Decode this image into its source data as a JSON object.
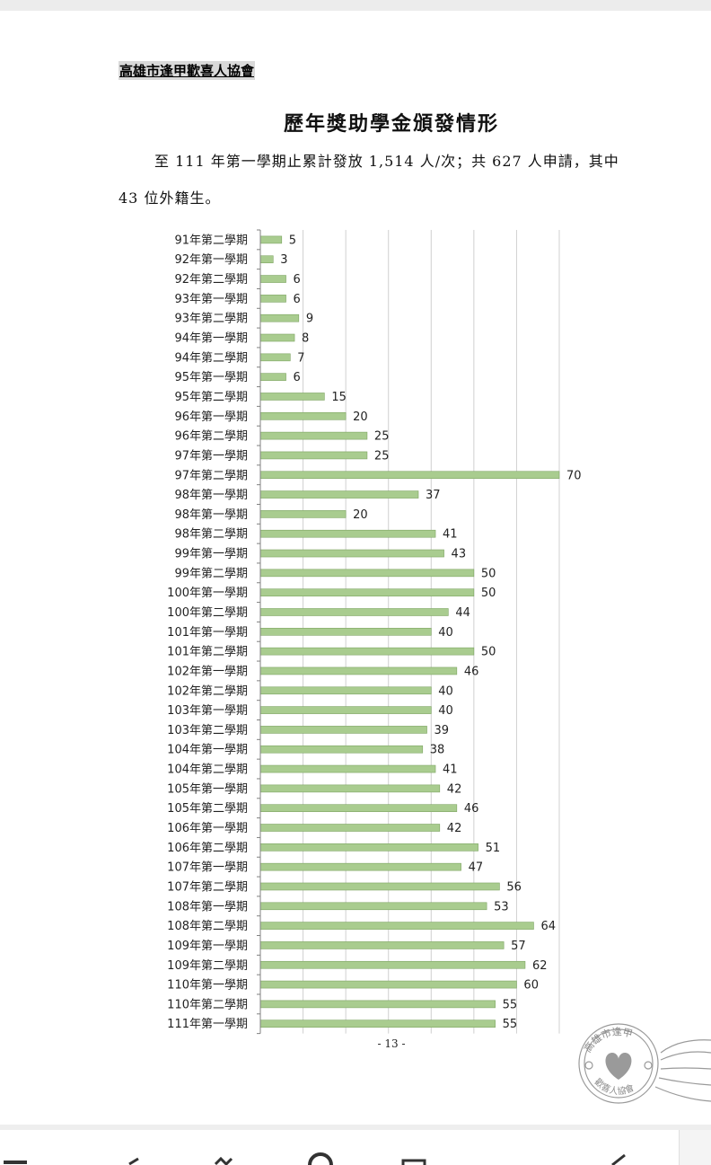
{
  "document": {
    "organization": "高雄市逢甲歡喜人協會",
    "title": "歷年獎助學金頒發情形",
    "paragraph_line1": "至 111 年第一學期止累計發放 1,514 人/次；共 627 人申請，其中",
    "paragraph_line2": "43 位外籍生。",
    "page_number": "- 13 -",
    "stamp_text_top": "高雄市逢甲",
    "stamp_text_bottom": "歡喜人協會"
  },
  "chart_data": {
    "type": "bar",
    "orientation": "horizontal",
    "categories": [
      "91年第二學期",
      "92年第一學期",
      "92年第二學期",
      "93年第一學期",
      "93年第二學期",
      "94年第一學期",
      "94年第二學期",
      "95年第一學期",
      "95年第二學期",
      "96年第一學期",
      "96年第二學期",
      "97年第一學期",
      "97年第二學期",
      "98年第一學期",
      "98年第一學期",
      "98年第二學期",
      "99年第一學期",
      "99年第二學期",
      "100年第一學期",
      "100年第二學期",
      "101年第一學期",
      "101年第二學期",
      "102年第一學期",
      "102年第二學期",
      "103年第一學期",
      "103年第二學期",
      "104年第一學期",
      "104年第二學期",
      "105年第一學期",
      "105年第二學期",
      "106年第一學期",
      "106年第二學期",
      "107年第一學期",
      "107年第二學期",
      "108年第一學期",
      "108年第二學期",
      "109年第一學期",
      "109年第二學期",
      "110年第一學期",
      "110年第二學期",
      "111年第一學期"
    ],
    "values": [
      5,
      3,
      6,
      6,
      9,
      8,
      7,
      6,
      15,
      20,
      25,
      25,
      70,
      37,
      20,
      41,
      43,
      50,
      50,
      44,
      40,
      50,
      46,
      40,
      40,
      39,
      38,
      41,
      42,
      46,
      42,
      51,
      47,
      56,
      53,
      64,
      57,
      62,
      60,
      55,
      55
    ],
    "xlim": [
      0,
      70
    ],
    "gridlines": [
      10,
      20,
      30,
      40,
      50,
      60,
      70
    ],
    "grid": true,
    "legend": "none",
    "data_labels": true,
    "colors": {
      "bar_fill": "#a9cc8f",
      "bar_stroke": "#7ea563",
      "grid": "#d0d0d0",
      "axis": "#808080"
    }
  },
  "toolbar": {
    "icons": [
      "list-icon",
      "undo-icon",
      "pen-icon",
      "circle-icon",
      "window-icon",
      "check-icon"
    ]
  }
}
